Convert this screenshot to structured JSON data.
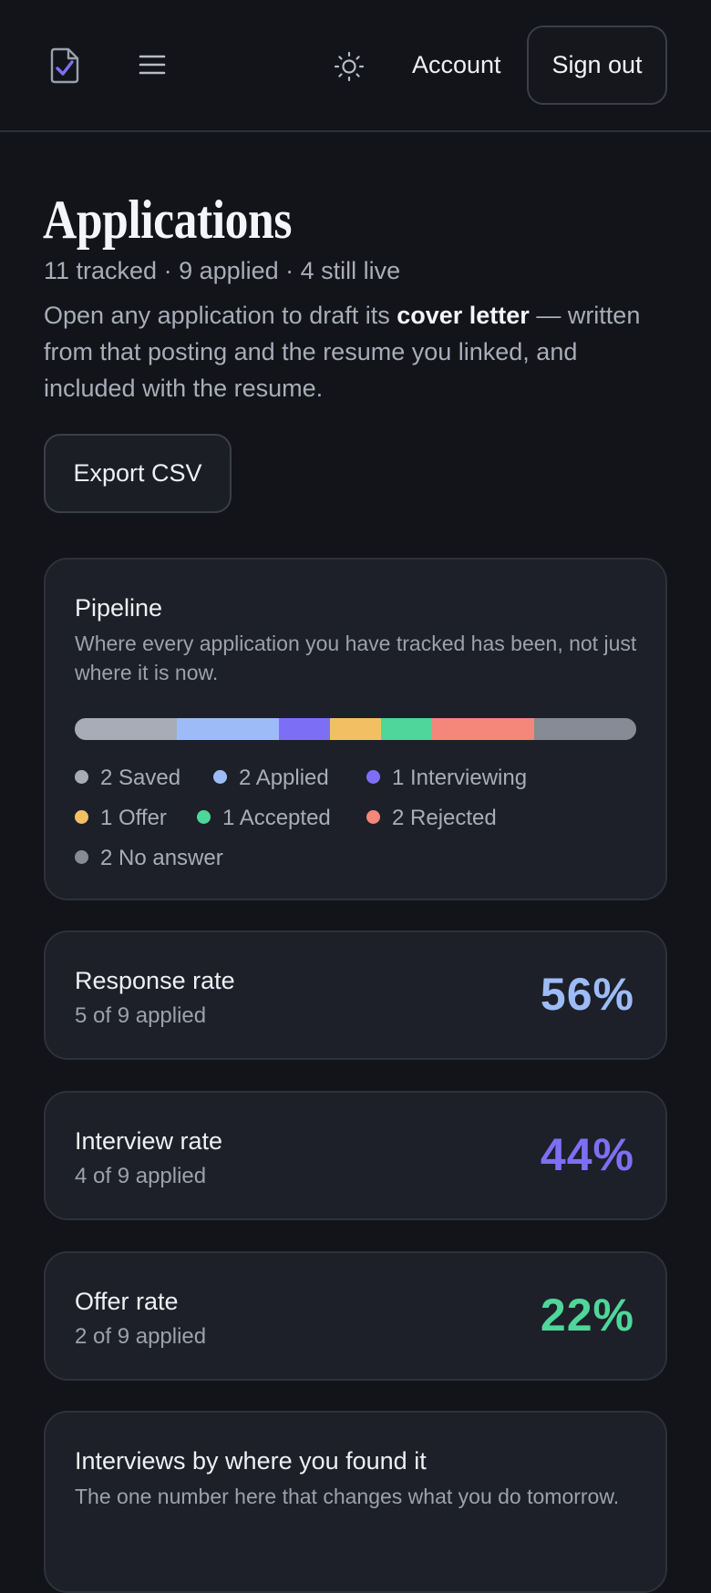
{
  "header": {
    "logo_icon": "clipboard-check-icon",
    "menu_icon": "hamburger-menu-icon",
    "theme_icon": "sun-icon",
    "account_label": "Account",
    "signout_label": "Sign out"
  },
  "page": {
    "title": "Applications",
    "summary": "11 tracked · 9 applied · 4 still live",
    "intro_before": "Open any application to draft its ",
    "intro_bold": "cover letter",
    "intro_after": " — written from that posting and the resume you linked, and included with the resume.",
    "export_label": "Export CSV"
  },
  "pipeline": {
    "title": "Pipeline",
    "subtitle": "Where every application you have tracked has been, not just where it is now.",
    "stages": [
      {
        "count": 2,
        "label": "2 Saved",
        "color": "#a7acb6"
      },
      {
        "count": 2,
        "label": "2 Applied",
        "color": "#9dbcf7"
      },
      {
        "count": 1,
        "label": "1 Interviewing",
        "color": "#7d6ff5"
      },
      {
        "count": 1,
        "label": "1 Offer",
        "color": "#f2c063"
      },
      {
        "count": 1,
        "label": "1 Accepted",
        "color": "#4fd69a"
      },
      {
        "count": 2,
        "label": "2 Rejected",
        "color": "#f5867a"
      },
      {
        "count": 2,
        "label": "2 No answer",
        "color": "#868b96"
      }
    ]
  },
  "rates": [
    {
      "title": "Response rate",
      "sub": "5 of 9 applied",
      "value": "56%",
      "color": "#9dbcf7"
    },
    {
      "title": "Interview rate",
      "sub": "4 of 9 applied",
      "value": "44%",
      "color": "#7d6ff5"
    },
    {
      "title": "Offer rate",
      "sub": "2 of 9 applied",
      "value": "22%",
      "color": "#4fd69a"
    }
  ],
  "sources": {
    "title": "Interviews by where you found it",
    "subtitle": "The one number here that changes what you do tomorrow."
  }
}
